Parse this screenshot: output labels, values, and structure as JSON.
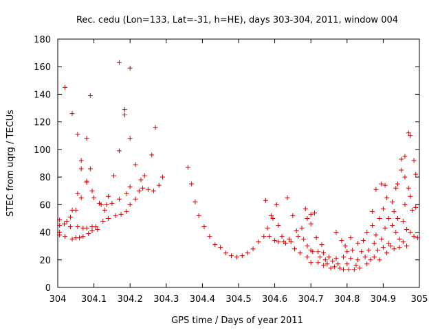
{
  "chart_data": {
    "type": "scatter",
    "title": "Rec. cedu (Lon=133, Lat=-31, h=HE), days 303-304, 2011, window 004",
    "xlabel": "GPS time / Days of year 2011",
    "ylabel": "STEC from uqrg / TECUs",
    "xlim": [
      304,
      305
    ],
    "ylim": [
      0,
      180
    ],
    "x_ticks": [
      304,
      304.1,
      304.2,
      304.3,
      304.4,
      304.5,
      304.6,
      304.7,
      304.8,
      304.9,
      305
    ],
    "x_tick_labels": [
      "304",
      "304.1",
      "304.2",
      "304.3",
      "304.4",
      "304.5",
      "304.6",
      "304.7",
      "304.8",
      "304.9",
      "305"
    ],
    "y_ticks": [
      0,
      20,
      40,
      60,
      80,
      100,
      120,
      140,
      160,
      180
    ],
    "y_tick_labels": [
      "0",
      "20",
      "40",
      "60",
      "80",
      "100",
      "120",
      "140",
      "160",
      "180"
    ],
    "grid": false,
    "marker": "+",
    "marker_color": "#cc0000",
    "series": [
      {
        "name": "STEC",
        "points": [
          [
            304.005,
            38
          ],
          [
            304.005,
            40
          ],
          [
            304.005,
            45
          ],
          [
            304.005,
            49
          ],
          [
            304.018,
            46
          ],
          [
            304.02,
            145
          ],
          [
            304.02,
            37
          ],
          [
            304.025,
            48
          ],
          [
            304.035,
            44
          ],
          [
            304.035,
            51
          ],
          [
            304.04,
            126
          ],
          [
            304.04,
            56
          ],
          [
            304.04,
            35
          ],
          [
            304.05,
            36
          ],
          [
            304.05,
            56
          ],
          [
            304.055,
            111
          ],
          [
            304.055,
            68
          ],
          [
            304.055,
            44
          ],
          [
            304.06,
            36
          ],
          [
            304.065,
            92
          ],
          [
            304.065,
            86
          ],
          [
            304.065,
            65
          ],
          [
            304.07,
            43
          ],
          [
            304.07,
            37
          ],
          [
            304.08,
            108
          ],
          [
            304.08,
            77
          ],
          [
            304.08,
            76
          ],
          [
            304.08,
            43
          ],
          [
            304.085,
            39
          ],
          [
            304.09,
            139
          ],
          [
            304.09,
            86
          ],
          [
            304.095,
            70
          ],
          [
            304.095,
            44
          ],
          [
            304.095,
            41
          ],
          [
            304.1,
            65
          ],
          [
            304.105,
            44
          ],
          [
            304.11,
            42
          ],
          [
            304.115,
            61
          ],
          [
            304.12,
            60
          ],
          [
            304.125,
            48
          ],
          [
            304.13,
            56
          ],
          [
            304.135,
            60
          ],
          [
            304.14,
            66
          ],
          [
            304.14,
            50
          ],
          [
            304.15,
            61
          ],
          [
            304.155,
            81
          ],
          [
            304.16,
            52
          ],
          [
            304.17,
            163
          ],
          [
            304.17,
            99
          ],
          [
            304.17,
            64
          ],
          [
            304.175,
            53
          ],
          [
            304.185,
            129
          ],
          [
            304.185,
            125
          ],
          [
            304.19,
            68
          ],
          [
            304.19,
            55
          ],
          [
            304.2,
            159
          ],
          [
            304.2,
            108
          ],
          [
            304.2,
            73
          ],
          [
            304.2,
            60
          ],
          [
            304.215,
            89
          ],
          [
            304.215,
            64
          ],
          [
            304.225,
            70
          ],
          [
            304.23,
            78
          ],
          [
            304.235,
            72
          ],
          [
            304.24,
            81
          ],
          [
            304.25,
            71
          ],
          [
            304.26,
            96
          ],
          [
            304.265,
            70
          ],
          [
            304.27,
            116
          ],
          [
            304.28,
            74
          ],
          [
            304.29,
            80
          ],
          [
            304.36,
            87
          ],
          [
            304.37,
            75
          ],
          [
            304.38,
            62
          ],
          [
            304.39,
            52
          ],
          [
            304.405,
            44
          ],
          [
            304.42,
            37
          ],
          [
            304.435,
            31
          ],
          [
            304.45,
            29
          ],
          [
            304.465,
            25
          ],
          [
            304.48,
            23
          ],
          [
            304.495,
            22
          ],
          [
            304.51,
            23
          ],
          [
            304.525,
            25
          ],
          [
            304.54,
            28
          ],
          [
            304.555,
            33
          ],
          [
            304.57,
            37
          ],
          [
            304.575,
            63
          ],
          [
            304.58,
            43
          ],
          [
            304.585,
            37
          ],
          [
            304.59,
            52
          ],
          [
            304.595,
            50
          ],
          [
            304.6,
            34
          ],
          [
            304.605,
            60
          ],
          [
            304.61,
            45
          ],
          [
            304.61,
            33
          ],
          [
            304.62,
            37
          ],
          [
            304.625,
            33
          ],
          [
            304.63,
            32
          ],
          [
            304.635,
            65
          ],
          [
            304.64,
            35
          ],
          [
            304.645,
            33
          ],
          [
            304.65,
            52
          ],
          [
            304.655,
            28
          ],
          [
            304.66,
            41
          ],
          [
            304.665,
            37
          ],
          [
            304.67,
            25
          ],
          [
            304.675,
            43
          ],
          [
            304.68,
            35
          ],
          [
            304.685,
            57
          ],
          [
            304.69,
            50
          ],
          [
            304.69,
            30
          ],
          [
            304.69,
            22
          ],
          [
            304.7,
            53
          ],
          [
            304.7,
            46
          ],
          [
            304.7,
            27
          ],
          [
            304.7,
            18
          ],
          [
            304.705,
            26
          ],
          [
            304.71,
            54
          ],
          [
            304.715,
            36
          ],
          [
            304.72,
            26
          ],
          [
            304.72,
            18
          ],
          [
            304.725,
            22
          ],
          [
            304.73,
            31
          ],
          [
            304.735,
            25
          ],
          [
            304.735,
            16
          ],
          [
            304.74,
            20
          ],
          [
            304.745,
            17
          ],
          [
            304.75,
            22
          ],
          [
            304.755,
            14
          ],
          [
            304.76,
            19
          ],
          [
            304.765,
            15
          ],
          [
            304.77,
            21
          ],
          [
            304.77,
            40
          ],
          [
            304.775,
            17
          ],
          [
            304.78,
            14
          ],
          [
            304.785,
            34
          ],
          [
            304.79,
            22
          ],
          [
            304.79,
            13
          ],
          [
            304.795,
            30
          ],
          [
            304.8,
            26
          ],
          [
            304.8,
            17
          ],
          [
            304.805,
            13
          ],
          [
            304.81,
            21
          ],
          [
            304.81,
            36
          ],
          [
            304.815,
            27
          ],
          [
            304.82,
            13
          ],
          [
            304.825,
            16
          ],
          [
            304.83,
            32
          ],
          [
            304.83,
            20
          ],
          [
            304.835,
            14
          ],
          [
            304.84,
            26
          ],
          [
            304.845,
            34
          ],
          [
            304.85,
            22
          ],
          [
            304.855,
            17
          ],
          [
            304.855,
            40
          ],
          [
            304.86,
            27
          ],
          [
            304.865,
            20
          ],
          [
            304.87,
            55
          ],
          [
            304.87,
            45
          ],
          [
            304.875,
            32
          ],
          [
            304.875,
            22
          ],
          [
            304.88,
            71
          ],
          [
            304.88,
            38
          ],
          [
            304.885,
            27
          ],
          [
            304.89,
            50
          ],
          [
            304.89,
            20
          ],
          [
            304.895,
            75
          ],
          [
            304.895,
            35
          ],
          [
            304.9,
            57
          ],
          [
            304.9,
            29
          ],
          [
            304.905,
            74
          ],
          [
            304.905,
            43
          ],
          [
            304.91,
            65
          ],
          [
            304.91,
            25
          ],
          [
            304.915,
            50
          ],
          [
            304.915,
            32
          ],
          [
            304.92,
            30
          ],
          [
            304.925,
            62
          ],
          [
            304.925,
            45
          ],
          [
            304.93,
            55
          ],
          [
            304.93,
            28
          ],
          [
            304.935,
            72
          ],
          [
            304.935,
            40
          ],
          [
            304.94,
            75
          ],
          [
            304.94,
            50
          ],
          [
            304.945,
            35
          ],
          [
            304.945,
            29
          ],
          [
            304.95,
            93
          ],
          [
            304.95,
            85
          ],
          [
            304.955,
            48
          ],
          [
            304.955,
            33
          ],
          [
            304.96,
            95
          ],
          [
            304.96,
            80
          ],
          [
            304.96,
            60
          ],
          [
            304.965,
            42
          ],
          [
            304.965,
            30
          ],
          [
            304.97,
            112
          ],
          [
            304.97,
            72
          ],
          [
            304.975,
            110
          ],
          [
            304.975,
            66
          ],
          [
            304.975,
            40
          ],
          [
            304.98,
            56
          ],
          [
            304.985,
            92
          ],
          [
            304.985,
            37
          ],
          [
            304.99,
            82
          ],
          [
            304.99,
            58
          ],
          [
            304.995,
            36
          ]
        ]
      }
    ]
  }
}
